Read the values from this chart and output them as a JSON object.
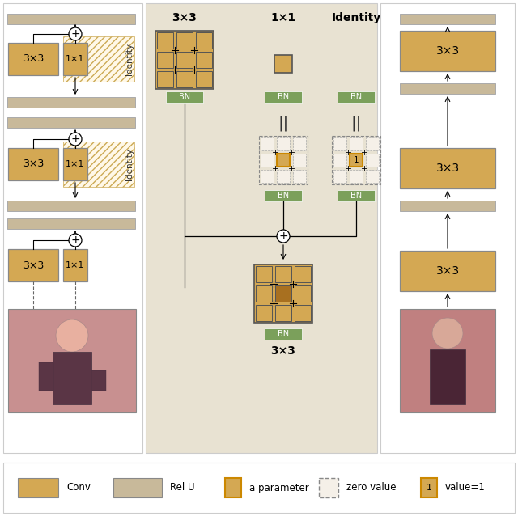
{
  "conv_color": "#D4A853",
  "relu_color": "#C8B99A",
  "bn_color": "#7BA05B",
  "bg_center_color": "#E8E2D2",
  "conv_label": "Conv",
  "relu_label": "Rel U",
  "param_label": "a parameter",
  "zero_label": "zero value",
  "value1_label": "value=1"
}
